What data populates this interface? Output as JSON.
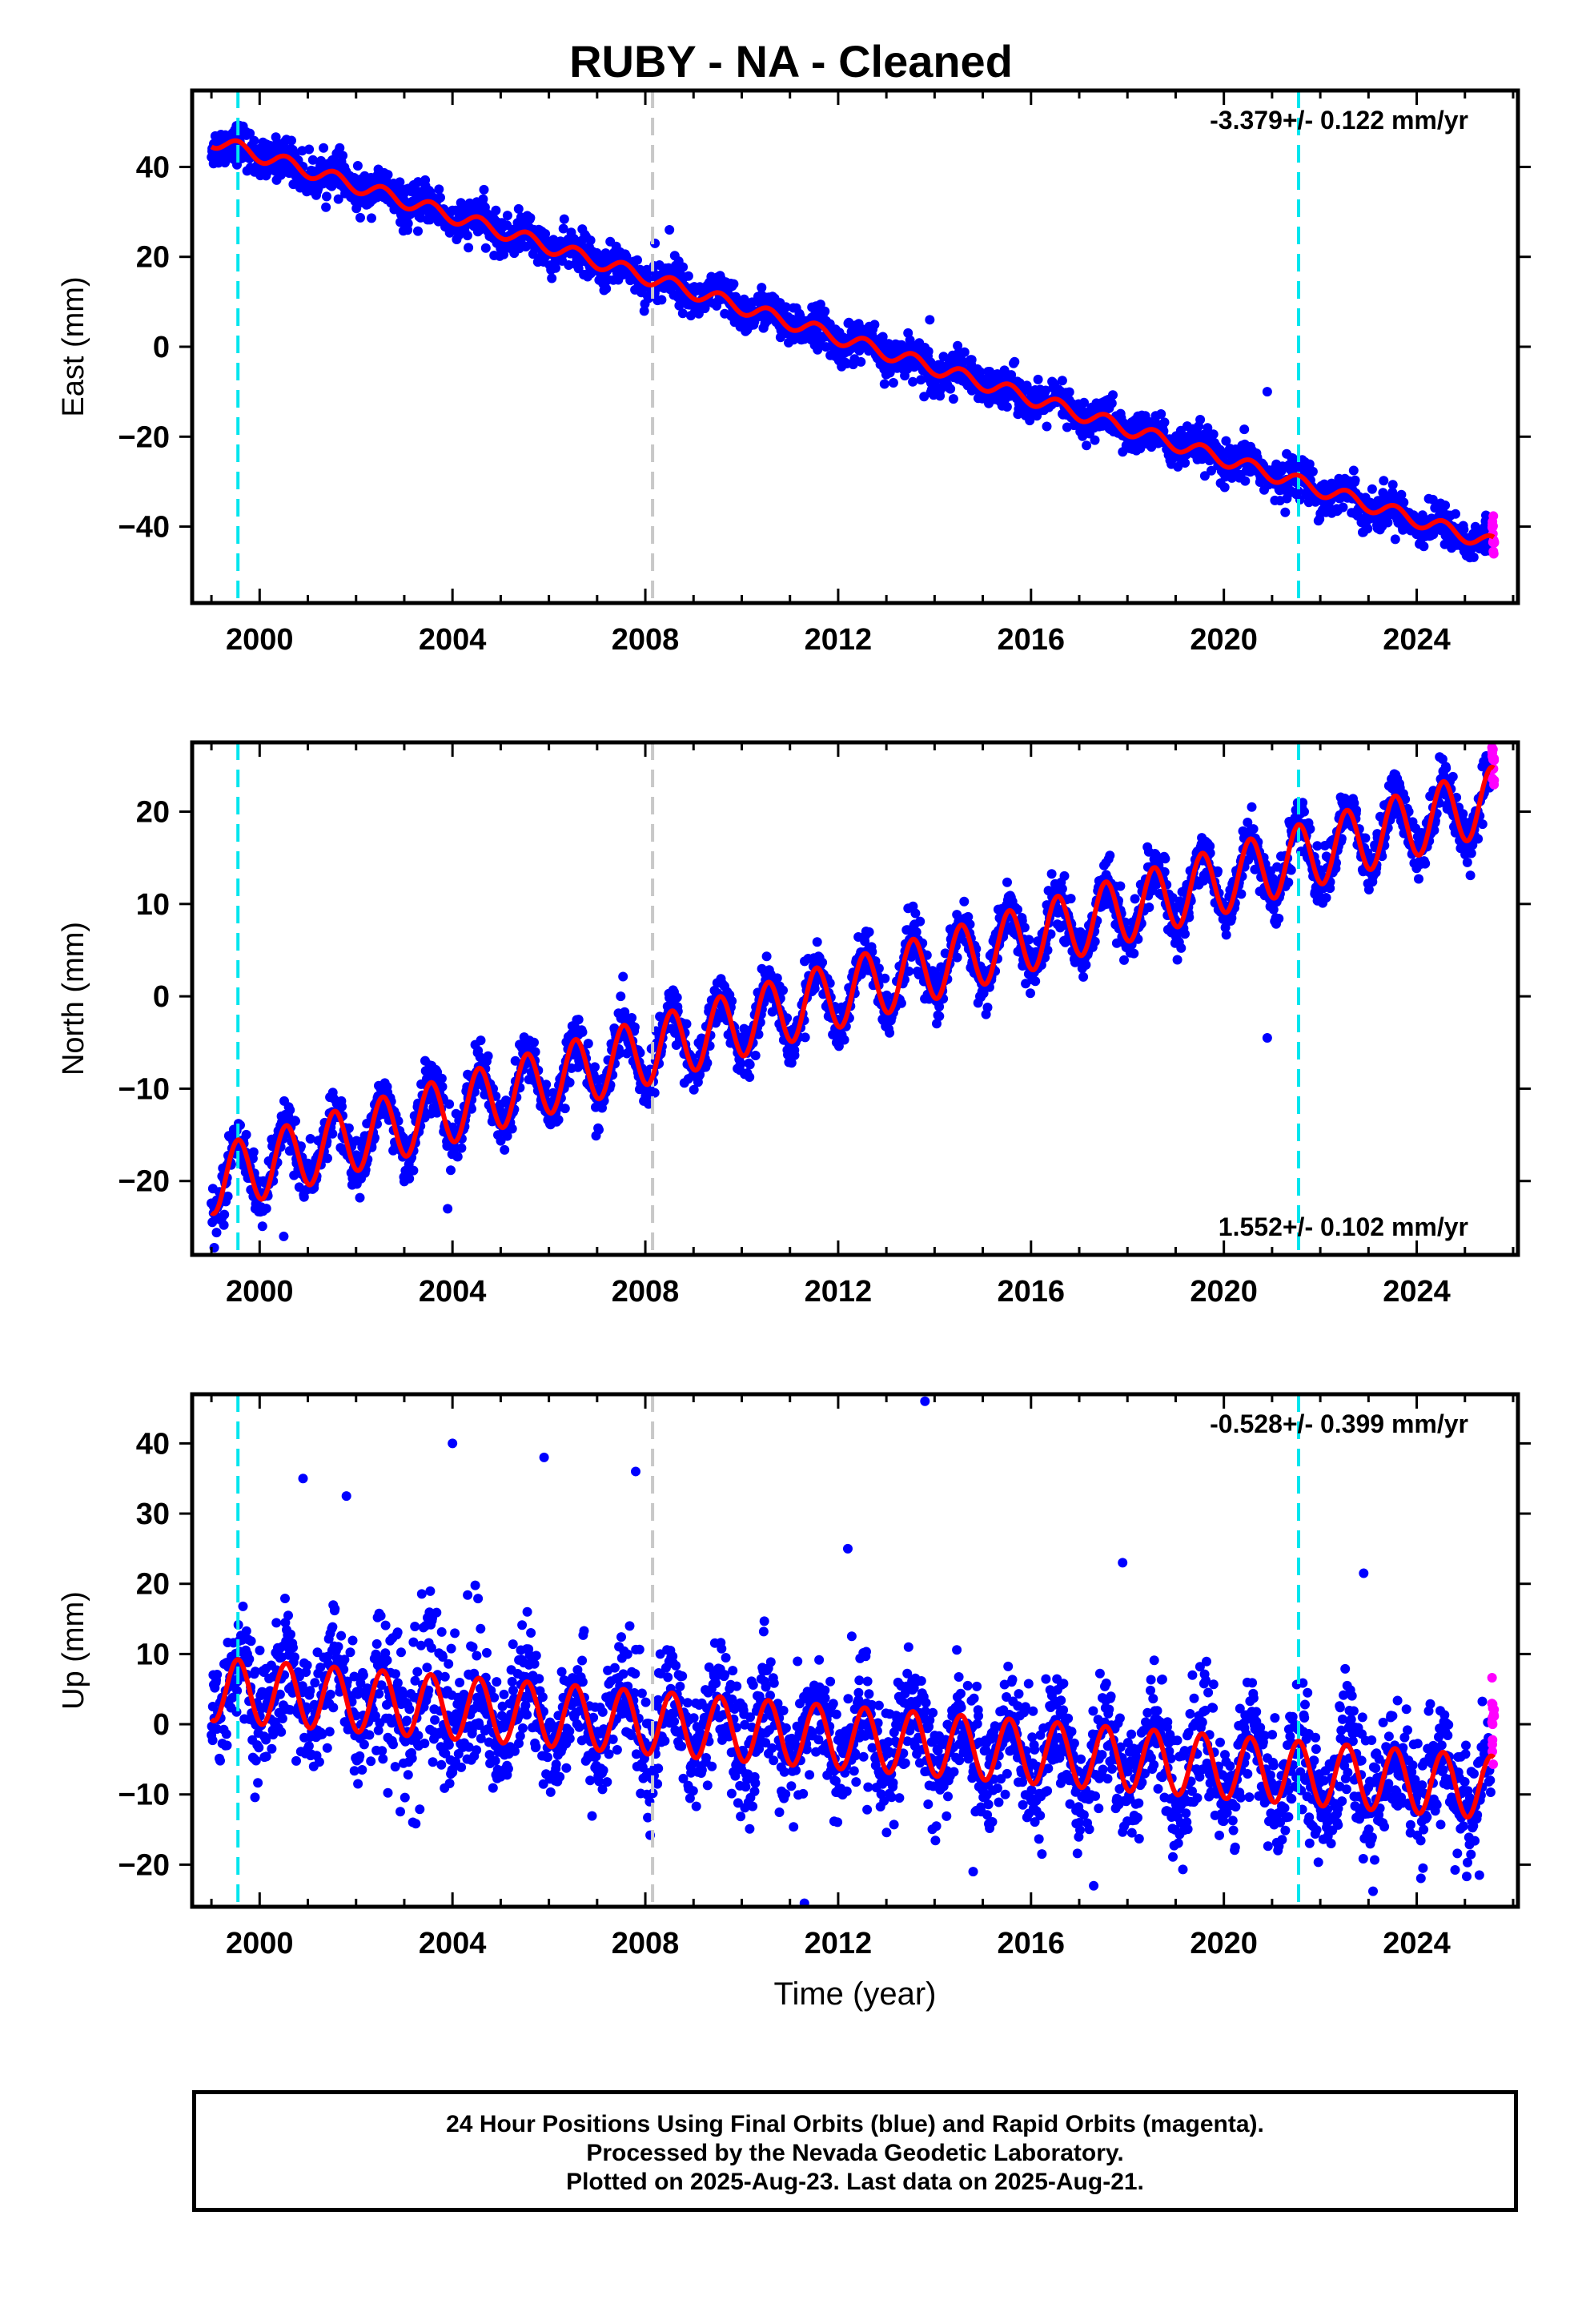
{
  "title": "RUBY  - NA - Cleaned",
  "footer": {
    "line1": "24 Hour Positions Using Final Orbits (blue) and Rapid Orbits (magenta).",
    "line2": "Processed by the Nevada Geodetic Laboratory.",
    "line3": "Plotted on 2025-Aug-23. Last data on 2025-Aug-21."
  },
  "colors": {
    "final": "#0000ff",
    "rapid": "#ff00ff",
    "model": "#ff0000",
    "equipment_change": "#00e5ee",
    "earthquake_marker": "#c8c8c8"
  },
  "chart_data": [
    {
      "type": "scatter",
      "component": "East",
      "ylabel": "East (mm)",
      "xlabel": "",
      "xlim": [
        1998.6,
        2026.1
      ],
      "ylim": [
        -57,
        57
      ],
      "xticks": [
        2000,
        2004,
        2008,
        2012,
        2016,
        2020,
        2024
      ],
      "yticks": [
        -40,
        -20,
        0,
        20,
        40
      ],
      "velocity_label": "-3.379+/- 0.122 mm/yr",
      "velocity_label_position": "top-right",
      "start_year": 1999.0,
      "end_year": 2025.6,
      "start_value": 46,
      "rate_mm_yr": -3.379,
      "seasonal_amplitude": 1.6,
      "scatter_sd": 2.2,
      "vlines_dashed_cyan": [
        1999.55,
        2021.55
      ],
      "vlines_dashed_gray": [
        2008.15
      ],
      "outliers": [
        [
          2008.5,
          26
        ],
        [
          2008.2,
          23
        ],
        [
          2013.9,
          6
        ],
        [
          2020.9,
          -10
        ]
      ]
    },
    {
      "type": "scatter",
      "component": "North",
      "ylabel": "North (mm)",
      "xlabel": "",
      "xlim": [
        1998.6,
        2026.1
      ],
      "ylim": [
        -28,
        27.5
      ],
      "xticks": [
        2000,
        2004,
        2008,
        2012,
        2016,
        2020,
        2024
      ],
      "yticks": [
        -20,
        -10,
        0,
        10,
        20
      ],
      "velocity_label": "1.552+/- 0.102 mm/yr",
      "velocity_label_position": "bottom-right",
      "start_year": 1999.0,
      "end_year": 2025.6,
      "start_value": -20,
      "rate_mm_yr": 1.552,
      "seasonal_amplitude": 3.6,
      "scatter_sd": 1.4,
      "vlines_dashed_cyan": [
        1999.55,
        2021.55
      ],
      "vlines_dashed_gray": [
        2008.15
      ],
      "outliers": [
        [
          2020.9,
          -4.5
        ],
        [
          2003.9,
          -23
        ],
        [
          2000.5,
          -26
        ]
      ]
    },
    {
      "type": "scatter",
      "component": "Up",
      "ylabel": "Up (mm)",
      "xlabel": "Time (year)",
      "xlim": [
        1998.6,
        2026.1
      ],
      "ylim": [
        -26,
        47
      ],
      "xticks": [
        2000,
        2004,
        2008,
        2012,
        2016,
        2020,
        2024
      ],
      "yticks": [
        -20,
        -10,
        0,
        10,
        20,
        30,
        40
      ],
      "velocity_label": "-0.528+/- 0.399 mm/yr",
      "velocity_label_position": "top-right",
      "start_year": 1999.0,
      "end_year": 2025.6,
      "start_value": 5,
      "rate_mm_yr": -0.528,
      "seasonal_amplitude": 4.5,
      "scatter_sd": 4.2,
      "vlines_dashed_cyan": [
        1999.55,
        2021.55
      ],
      "vlines_dashed_gray": [
        2008.15
      ],
      "outliers": [
        [
          2013.8,
          46
        ],
        [
          2004.0,
          40
        ],
        [
          2005.9,
          38
        ],
        [
          2007.8,
          36
        ],
        [
          2000.9,
          35
        ],
        [
          2001.8,
          32.5
        ],
        [
          2011.3,
          -25.5
        ],
        [
          2017.3,
          -23
        ],
        [
          2014.8,
          -21
        ],
        [
          2025.3,
          -21.5
        ],
        [
          2012.2,
          25
        ],
        [
          2017.9,
          23
        ],
        [
          2022.9,
          21.5
        ]
      ]
    }
  ]
}
